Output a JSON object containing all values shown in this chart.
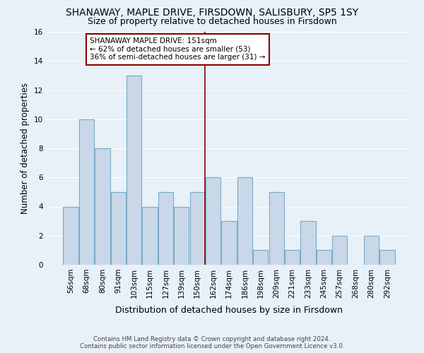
{
  "title": "SHANAWAY, MAPLE DRIVE, FIRSDOWN, SALISBURY, SP5 1SY",
  "subtitle": "Size of property relative to detached houses in Firsdown",
  "xlabel": "Distribution of detached houses by size in Firsdown",
  "ylabel": "Number of detached properties",
  "categories": [
    "56sqm",
    "68sqm",
    "80sqm",
    "91sqm",
    "103sqm",
    "115sqm",
    "127sqm",
    "139sqm",
    "150sqm",
    "162sqm",
    "174sqm",
    "186sqm",
    "198sqm",
    "209sqm",
    "221sqm",
    "233sqm",
    "245sqm",
    "257sqm",
    "268sqm",
    "280sqm",
    "292sqm"
  ],
  "values": [
    4,
    10,
    8,
    5,
    13,
    4,
    5,
    4,
    5,
    6,
    3,
    6,
    1,
    5,
    1,
    3,
    1,
    2,
    0,
    2,
    1
  ],
  "bar_color": "#c8d8e8",
  "bar_edge_color": "#7aaac8",
  "background_color": "#e8f0f8",
  "grid_color": "#ffffff",
  "vline_position": 8.5,
  "vline_color": "#8b0000",
  "annotation_text": "SHANAWAY MAPLE DRIVE: 151sqm\n← 62% of detached houses are smaller (53)\n36% of semi-detached houses are larger (31) →",
  "annotation_box_color": "#ffffff",
  "annotation_box_edge_color": "#8b0000",
  "footer_line1": "Contains HM Land Registry data © Crown copyright and database right 2024.",
  "footer_line2": "Contains public sector information licensed under the Open Government Licence v3.0.",
  "ylim": [
    0,
    16
  ],
  "title_fontsize": 10,
  "subtitle_fontsize": 9,
  "tick_fontsize": 7.5,
  "ylabel_fontsize": 8.5,
  "xlabel_fontsize": 9,
  "annotation_fontsize": 7.5,
  "footer_fontsize": 6.2
}
